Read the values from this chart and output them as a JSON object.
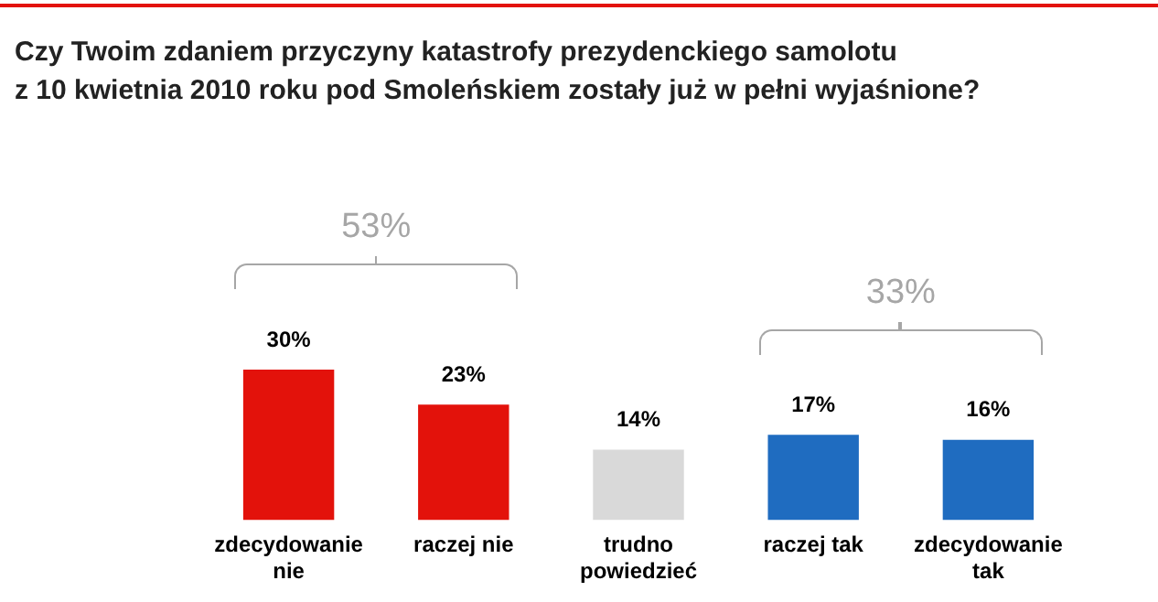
{
  "chart_data": {
    "type": "bar",
    "title": "Czy Twoim zdaniem przyczyny katastrofy prezydenckiego samolotu\nz 10 kwietnia 2010 roku pod Smoleńskiem zostały już w pełni wyjaśnione?",
    "categories": [
      "zdecydowanie nie",
      "raczej nie",
      "trudno powiedzieć",
      "raczej tak",
      "zdecydowanie tak"
    ],
    "values": [
      30,
      23,
      14,
      17,
      16
    ],
    "colors": [
      "#e3120b",
      "#e3120b",
      "#d9d9d9",
      "#1f6cc0",
      "#1f6cc0"
    ],
    "value_labels": [
      "30%",
      "23%",
      "14%",
      "17%",
      "16%"
    ],
    "annotations": [
      "53%",
      "33%"
    ],
    "legend": false,
    "grid": false
  }
}
